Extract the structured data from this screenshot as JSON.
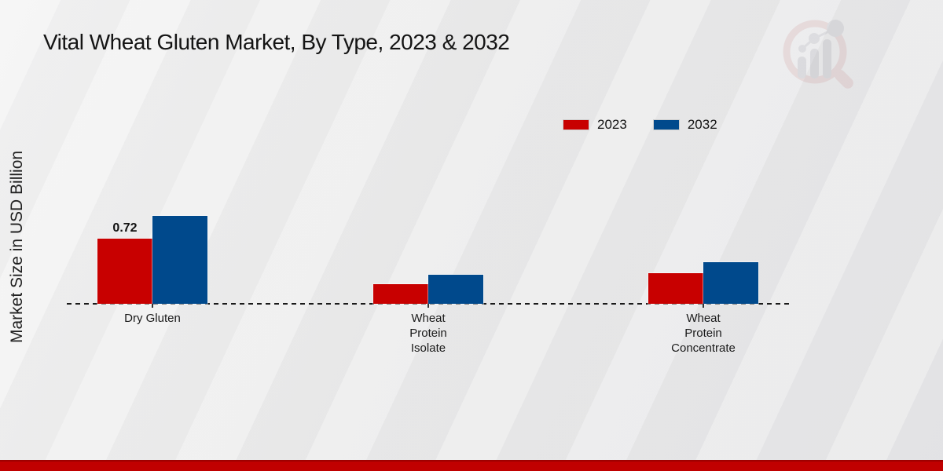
{
  "title": "Vital Wheat Gluten Market, By Type, 2023 & 2032",
  "y_axis_label": "Market Size in USD Billion",
  "legend": {
    "items": [
      {
        "label": "2023",
        "color": "#c80000"
      },
      {
        "label": "2032",
        "color": "#00498c"
      }
    ]
  },
  "icons": {
    "watermark": "magnifier-bar-chart-logo"
  },
  "footer": {
    "bar_color": "#c00000",
    "bar_edge_color": "#9e0000"
  },
  "chart_data": {
    "type": "bar",
    "title": "Vital Wheat Gluten Market, By Type, 2023 & 2032",
    "ylabel": "Market Size in USD Billion",
    "categories": [
      "Dry Gluten",
      "Wheat Protein Isolate",
      "Wheat Protein Concentrate"
    ],
    "category_lines": [
      [
        "Dry Gluten"
      ],
      [
        "Wheat",
        "Protein",
        "Isolate"
      ],
      [
        "Wheat",
        "Protein",
        "Concentrate"
      ]
    ],
    "series": [
      {
        "name": "2023",
        "color": "#c80000",
        "values": [
          0.72,
          0.22,
          0.34
        ],
        "labels": [
          "0.72",
          null,
          null
        ]
      },
      {
        "name": "2032",
        "color": "#00498c",
        "values": [
          0.97,
          0.32,
          0.46
        ],
        "labels": [
          null,
          null,
          null
        ]
      }
    ],
    "ylim": [
      0,
      1.05
    ],
    "grid": false,
    "legend_position": "top-right",
    "zero_line_style": "dashed"
  }
}
